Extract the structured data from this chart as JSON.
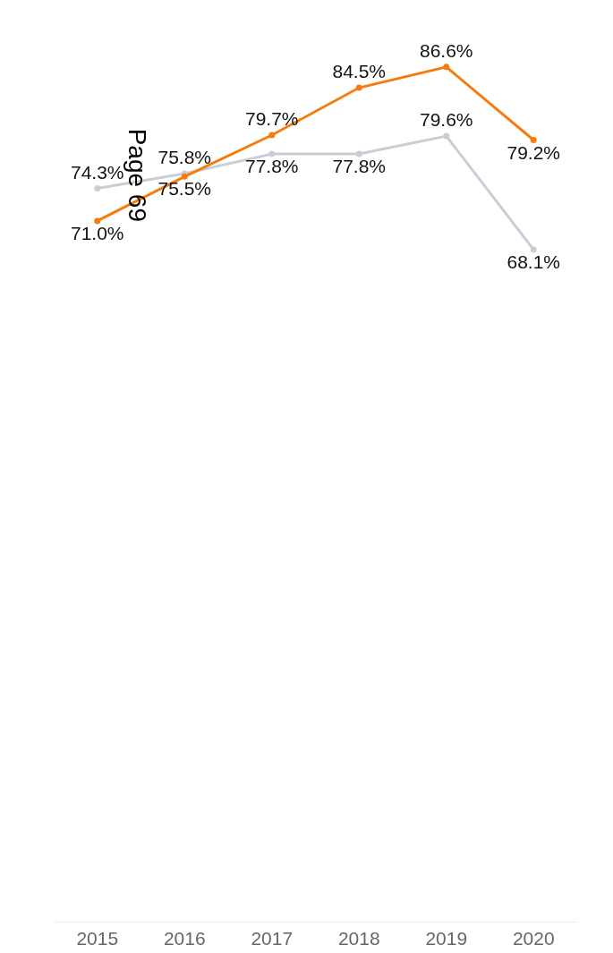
{
  "chart_data": {
    "type": "line",
    "categories": [
      "2015",
      "2016",
      "2017",
      "2018",
      "2019",
      "2020"
    ],
    "series": [
      {
        "color": "#c8ced6",
        "values": [
          74.3,
          75.8,
          77.8,
          77.8,
          79.6,
          68.1
        ],
        "value_labels": [
          "74.3%",
          "75.8%",
          "77.8%",
          "77.8%",
          "79.6%",
          "68.1%"
        ]
      },
      {
        "color": "#f57c0f",
        "values": [
          71.0,
          75.5,
          79.7,
          84.5,
          86.6,
          79.2
        ],
        "value_labels": [
          "71.0%",
          "75.5%",
          "79.7%",
          "84.5%",
          "86.6%",
          "79.2%"
        ]
      }
    ],
    "tick_labels": "x",
    "marker": "circle",
    "line_style": "solid",
    "grid": false,
    "annotations": [
      "Page 69"
    ]
  }
}
